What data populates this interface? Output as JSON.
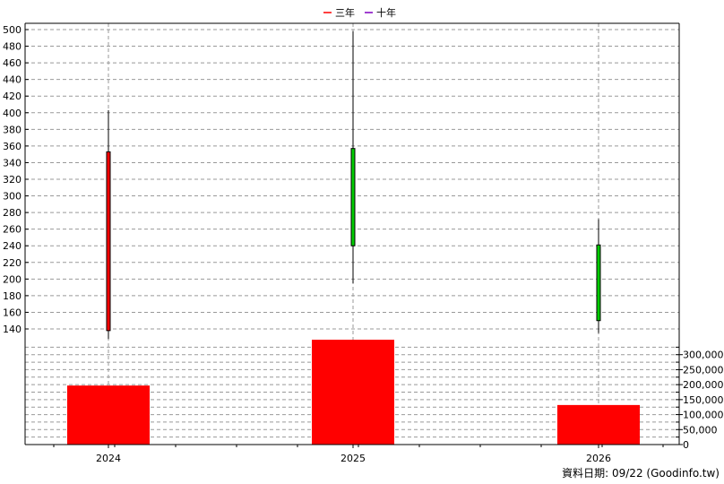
{
  "chart_data": {
    "type": "candlestick",
    "legend": [
      {
        "name": "三年",
        "color": "#ff0000"
      },
      {
        "name": "十年",
        "color": "#8000c0"
      }
    ],
    "categories": [
      "2024",
      "2025",
      "2026"
    ],
    "price_axis": {
      "ylim": [
        130,
        505
      ],
      "ticks": [
        140,
        160,
        180,
        200,
        220,
        240,
        260,
        280,
        300,
        320,
        340,
        360,
        380,
        400,
        420,
        440,
        460,
        480,
        500
      ],
      "labels": [
        "140",
        "160",
        "180",
        "200",
        "220",
        "240",
        "260",
        "280",
        "300",
        "320",
        "340",
        "360",
        "380",
        "400",
        "420",
        "440",
        "460",
        "480",
        "500"
      ]
    },
    "volume_axis": {
      "ylim": [
        0,
        350000
      ],
      "ticks": [
        0,
        50000,
        100000,
        150000,
        200000,
        250000,
        300000
      ],
      "labels": [
        "0",
        "50,000",
        "100,000",
        "150,000",
        "200,000",
        "250,000",
        "300,000"
      ]
    },
    "candles": [
      {
        "x": "2024",
        "open": 353,
        "close": 138,
        "high": 403,
        "low": 128,
        "color": "#ff0000"
      },
      {
        "x": "2025",
        "open": 240,
        "close": 357,
        "high": 498,
        "low": 195,
        "color": "#00cc00"
      },
      {
        "x": "2026",
        "open": 150,
        "close": 241,
        "high": 272,
        "low": 135,
        "color": "#00cc00"
      }
    ],
    "volume": [
      {
        "x": "2024",
        "value": 197000,
        "color": "#ff0000"
      },
      {
        "x": "2025",
        "value": 350000,
        "color": "#ff0000"
      },
      {
        "x": "2026",
        "value": 132000,
        "color": "#ff0000"
      }
    ],
    "grid": true
  },
  "footer": "資料日期: 09/22  (Goodinfo.tw)"
}
